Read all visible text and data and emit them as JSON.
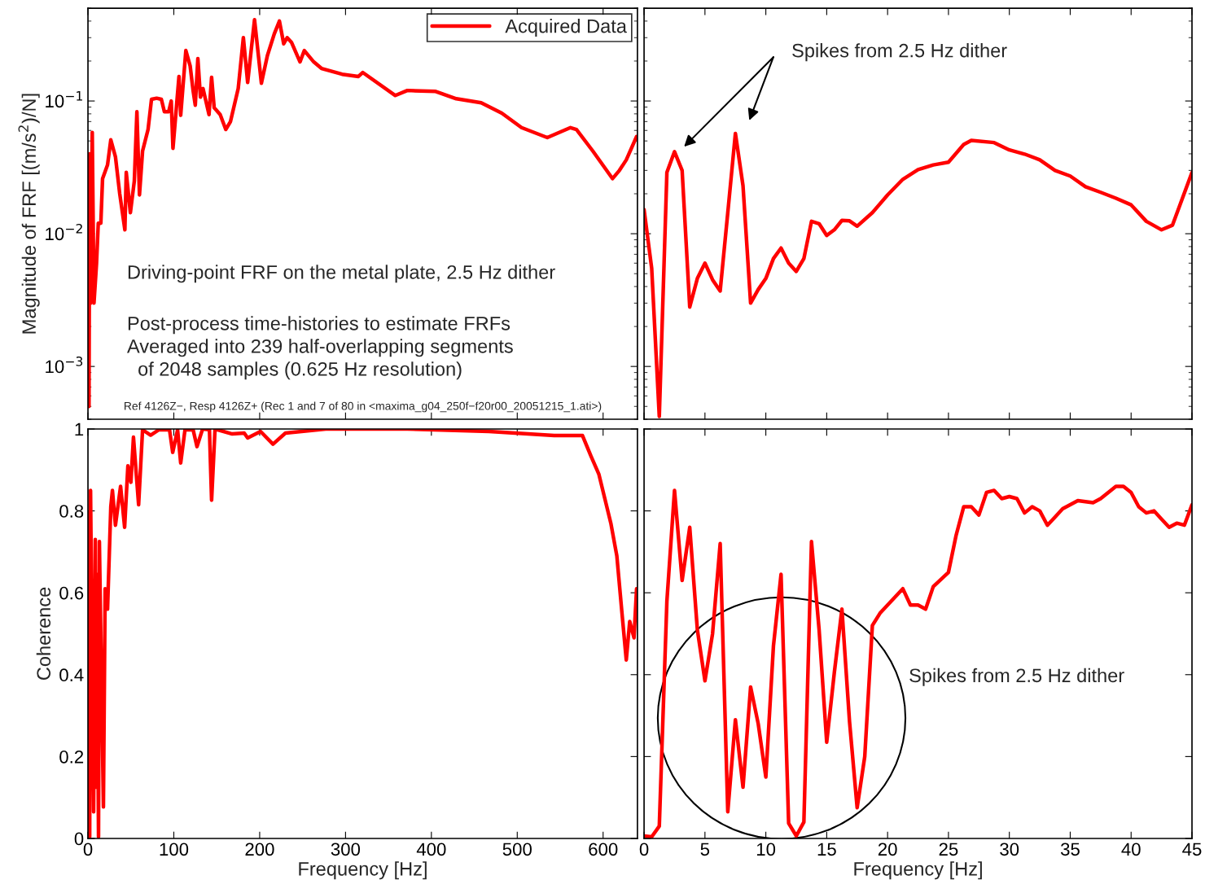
{
  "chart_data": [
    {
      "type": "line",
      "ylabel": "Magnitude of FRF [(m/s$^{2}$)/N]",
      "log": "y",
      "xlim": [
        0,
        640
      ],
      "ylim": [
        0.0004,
        0.5
      ],
      "xticks": [
        0,
        100,
        200,
        300,
        400,
        500,
        600
      ],
      "yticks": [
        {
          "value": 0.001,
          "label": "10$^{−3}$"
        },
        {
          "value": 0.01,
          "label": "10$^{−2}$"
        },
        {
          "value": 0.1,
          "label": "10$^{−1}$"
        }
      ],
      "tick_labels": "y",
      "grid": false,
      "legend": "top right",
      "line_style": "solid",
      "marker": "none",
      "annotations": [
        "Driving-point FRF on the metal plate, 2.5 Hz dither",
        "Post-process time-histories to estimate FRFs\nAveraged into 239 half-overlapping segments\n  of 2048 samples (0.625 Hz resolution)",
        "Ref 4126Z−, Resp 4126Z+ (Rec 1 and 7 of 80 in <maxima_g04_250f−f20r00_20051215_1.ati>)"
      ],
      "series": [
        {
          "name": "Acquired Data",
          "color": "#ff0000",
          "x": [
            0.6,
            1.2,
            2,
            3,
            5,
            7,
            10,
            12,
            15,
            17,
            22.8,
            26.6,
            32,
            37,
            43,
            44.6,
            49.4,
            54,
            57,
            60,
            63.6,
            70,
            74,
            80,
            85.5,
            89,
            94,
            97,
            99,
            106,
            108,
            114,
            119,
            122.5,
            125,
            128,
            131,
            134,
            141,
            144,
            147,
            154,
            160.5,
            166,
            175,
            181,
            186,
            194,
            202,
            209,
            217,
            223,
            228,
            232,
            237,
            247,
            252,
            263,
            272,
            296,
            315,
            320,
            358,
            372,
            405,
            429,
            458,
            482,
            505,
            535,
            562,
            569,
            588,
            611,
            619,
            627,
            639
          ],
          "values": [
            0.03,
            0.0005,
            0.04,
            0.003,
            0.058,
            0.003,
            0.006,
            0.012,
            0.012,
            0.026,
            0.033,
            0.051,
            0.038,
            0.02,
            0.0107,
            0.029,
            0.0144,
            0.025,
            0.083,
            0.0196,
            0.042,
            0.061,
            0.103,
            0.105,
            0.103,
            0.083,
            0.083,
            0.1,
            0.044,
            0.153,
            0.078,
            0.24,
            0.184,
            0.119,
            0.093,
            0.209,
            0.107,
            0.124,
            0.079,
            0.151,
            0.089,
            0.079,
            0.061,
            0.07,
            0.124,
            0.3,
            0.138,
            0.41,
            0.136,
            0.22,
            0.32,
            0.4,
            0.27,
            0.3,
            0.277,
            0.197,
            0.24,
            0.197,
            0.176,
            0.159,
            0.153,
            0.164,
            0.11,
            0.12,
            0.118,
            0.104,
            0.097,
            0.081,
            0.063,
            0.053,
            0.063,
            0.061,
            0.042,
            0.026,
            0.03,
            0.036,
            0.054
          ]
        }
      ]
    },
    {
      "type": "line",
      "log": "y",
      "xlim": [
        0,
        45
      ],
      "ylim": [
        0.0004,
        0.5
      ],
      "xticks": [
        0,
        5,
        10,
        15,
        20,
        25,
        30,
        35,
        40,
        45
      ],
      "yticks": [
        {
          "value": 0.001,
          "label": null
        },
        {
          "value": 0.01,
          "label": null
        },
        {
          "value": 0.1,
          "label": null
        }
      ],
      "tick_labels": false,
      "grid": false,
      "line_style": "solid",
      "marker": "none",
      "annotations": [
        "Spikes from 2.5 Hz dither"
      ],
      "series": [
        {
          "color": "#ff0000",
          "x": [
            0,
            0.625,
            1.25,
            1.875,
            2.5,
            3.125,
            3.75,
            4.375,
            5,
            5.625,
            6.25,
            6.875,
            7.5,
            8.125,
            8.75,
            9.375,
            10,
            10.625,
            11.25,
            11.875,
            12.5,
            13.125,
            13.75,
            14.375,
            15,
            15.625,
            16.25,
            16.875,
            17.5,
            18.75,
            20,
            21.25,
            22.5,
            23.75,
            25,
            26.25,
            26.875,
            28.75,
            30,
            31.25,
            32.5,
            33.75,
            35,
            36.25,
            37.5,
            38.75,
            40,
            41.25,
            42.5,
            43.4,
            45
          ],
          "values": [
            0.0152,
            0.0055,
            0.00042,
            0.029,
            0.0415,
            0.03,
            0.0028,
            0.0046,
            0.006,
            0.0045,
            0.0037,
            0.0144,
            0.057,
            0.023,
            0.003,
            0.0038,
            0.0046,
            0.0065,
            0.0078,
            0.006,
            0.0052,
            0.0065,
            0.0124,
            0.0119,
            0.0097,
            0.0107,
            0.0126,
            0.0125,
            0.0114,
            0.0144,
            0.0196,
            0.0257,
            0.0304,
            0.033,
            0.0346,
            0.047,
            0.0505,
            0.0486,
            0.0428,
            0.0398,
            0.036,
            0.03,
            0.0272,
            0.0226,
            0.0205,
            0.0185,
            0.0165,
            0.0124,
            0.0107,
            0.0116,
            0.029
          ]
        }
      ]
    },
    {
      "type": "line",
      "xlabel": "Frequency [Hz]",
      "ylabel": "Coherence",
      "xlim": [
        0,
        640
      ],
      "ylim": [
        0,
        1
      ],
      "xticks": [
        0,
        100,
        200,
        300,
        400,
        500,
        600
      ],
      "yticks": [
        0,
        0.2,
        0.4,
        0.6,
        0.8,
        1
      ],
      "grid": false,
      "line_style": "solid",
      "marker": "none",
      "series": [
        {
          "color": "#ff0000",
          "x": [
            1,
            2,
            3,
            6.6,
            8.5,
            9.5,
            10.4,
            12.3,
            13.3,
            18,
            20,
            22.8,
            26.6,
            28.5,
            32,
            38,
            42.7,
            46.5,
            50,
            53,
            59,
            63.6,
            73,
            82.6,
            95,
            98.7,
            104.4,
            108,
            113,
            122.5,
            127,
            133.5,
            141.5,
            144,
            148,
            168,
            182,
            186,
            201,
            215.5,
            230,
            277,
            372,
            467,
            543,
            562,
            576,
            586,
            595,
            602,
            609,
            616,
            622,
            627,
            631,
            636,
            639
          ],
          "values": [
            0.795,
            0.004,
            0.85,
            0.065,
            0.73,
            0.125,
            0.645,
            0.004,
            0.725,
            0.077,
            0.61,
            0.56,
            0.81,
            0.85,
            0.765,
            0.86,
            0.76,
            0.91,
            0.87,
            0.98,
            0.815,
            0.998,
            0.985,
            0.998,
            0.998,
            0.943,
            0.998,
            0.917,
            0.998,
            0.998,
            0.957,
            1.0,
            0.998,
            0.826,
            1.0,
            0.988,
            0.99,
            0.978,
            0.994,
            0.963,
            0.99,
            1.0,
            1.0,
            0.994,
            0.984,
            0.984,
            0.984,
            0.933,
            0.89,
            0.83,
            0.77,
            0.69,
            0.55,
            0.436,
            0.53,
            0.49,
            0.61
          ]
        }
      ]
    },
    {
      "type": "line",
      "xlabel": "Frequency [Hz]",
      "xlim": [
        0,
        45
      ],
      "ylim": [
        0,
        1
      ],
      "xticks": [
        0,
        5,
        10,
        15,
        20,
        25,
        30,
        35,
        40,
        45
      ],
      "yticks": [
        0,
        0.2,
        0.4,
        0.6,
        0.8,
        1
      ],
      "tick_labels": "x",
      "grid": false,
      "line_style": "solid",
      "marker": "none",
      "annotations": [
        "Spikes from 2.5 Hz dither"
      ],
      "series": [
        {
          "color": "#ff0000",
          "x": [
            0,
            0.625,
            1.25,
            1.875,
            2.5,
            3.125,
            3.75,
            4.375,
            5,
            5.625,
            6.25,
            6.875,
            7.5,
            8.125,
            8.75,
            9.375,
            10,
            10.625,
            11.25,
            11.875,
            12.5,
            13.125,
            13.75,
            14.375,
            15,
            15.625,
            16.25,
            16.875,
            17.5,
            18.125,
            18.75,
            19.375,
            20,
            20.625,
            21.25,
            21.875,
            22.5,
            23.125,
            23.75,
            25,
            25.625,
            26.25,
            26.875,
            27.5,
            28.125,
            28.75,
            29.375,
            30,
            30.625,
            31.25,
            31.875,
            32.5,
            33.125,
            33.75,
            34.375,
            35.625,
            36.875,
            37.5,
            38.75,
            39.375,
            40,
            40.625,
            41.25,
            41.875,
            42.5,
            43.125,
            43.75,
            44.375,
            45
          ],
          "values": [
            0.006,
            0.004,
            0.03,
            0.58,
            0.85,
            0.63,
            0.76,
            0.51,
            0.385,
            0.5,
            0.72,
            0.065,
            0.29,
            0.125,
            0.37,
            0.28,
            0.15,
            0.47,
            0.645,
            0.037,
            0.006,
            0.04,
            0.725,
            0.51,
            0.235,
            0.405,
            0.56,
            0.285,
            0.075,
            0.2,
            0.52,
            0.55,
            0.57,
            0.59,
            0.61,
            0.57,
            0.57,
            0.56,
            0.615,
            0.65,
            0.74,
            0.81,
            0.81,
            0.79,
            0.845,
            0.85,
            0.83,
            0.835,
            0.83,
            0.795,
            0.81,
            0.8,
            0.765,
            0.785,
            0.805,
            0.825,
            0.82,
            0.83,
            0.86,
            0.86,
            0.845,
            0.81,
            0.795,
            0.8,
            0.78,
            0.76,
            0.77,
            0.765,
            0.815
          ]
        }
      ]
    }
  ]
}
